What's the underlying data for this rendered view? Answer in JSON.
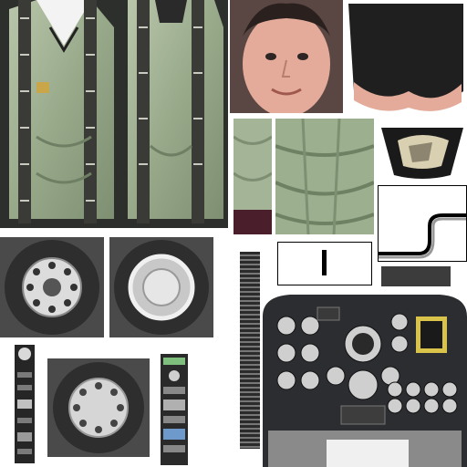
{
  "atlas": {
    "kind": "texture-atlas",
    "regions": [
      {
        "id": "flight-suit-front",
        "icon": "flight-suit-icon"
      },
      {
        "id": "flight-suit-back",
        "icon": "flight-suit-icon"
      },
      {
        "id": "pilot-face",
        "icon": "face-icon"
      },
      {
        "id": "pilot-hair",
        "icon": "hair-icon"
      },
      {
        "id": "suit-sleeve",
        "icon": "sleeve-icon"
      },
      {
        "id": "suit-torso-patch",
        "icon": "fabric-icon"
      },
      {
        "id": "canopy-glare",
        "icon": "canopy-icon"
      },
      {
        "id": "curve-gradient",
        "icon": "gradient-icon"
      },
      {
        "id": "wheel-with-hub",
        "icon": "wheel-icon"
      },
      {
        "id": "wheel-plain-hub",
        "icon": "wheel-icon"
      },
      {
        "id": "wheel-small",
        "icon": "wheel-icon"
      },
      {
        "id": "instrument-strip",
        "icon": "gauge-icon"
      },
      {
        "id": "cockpit-panel",
        "icon": "cockpit-icon"
      },
      {
        "id": "ladder-strip",
        "icon": "strip-icon"
      }
    ],
    "colors": {
      "suit": "#a7b798",
      "suit_dark": "#4f5d45",
      "tire": "#333333",
      "rim": "#e2e2e2",
      "panel": "#2b2d31",
      "skin": "#e4ab9a",
      "hair": "#1f1f1f",
      "background": "#ffffff"
    }
  }
}
